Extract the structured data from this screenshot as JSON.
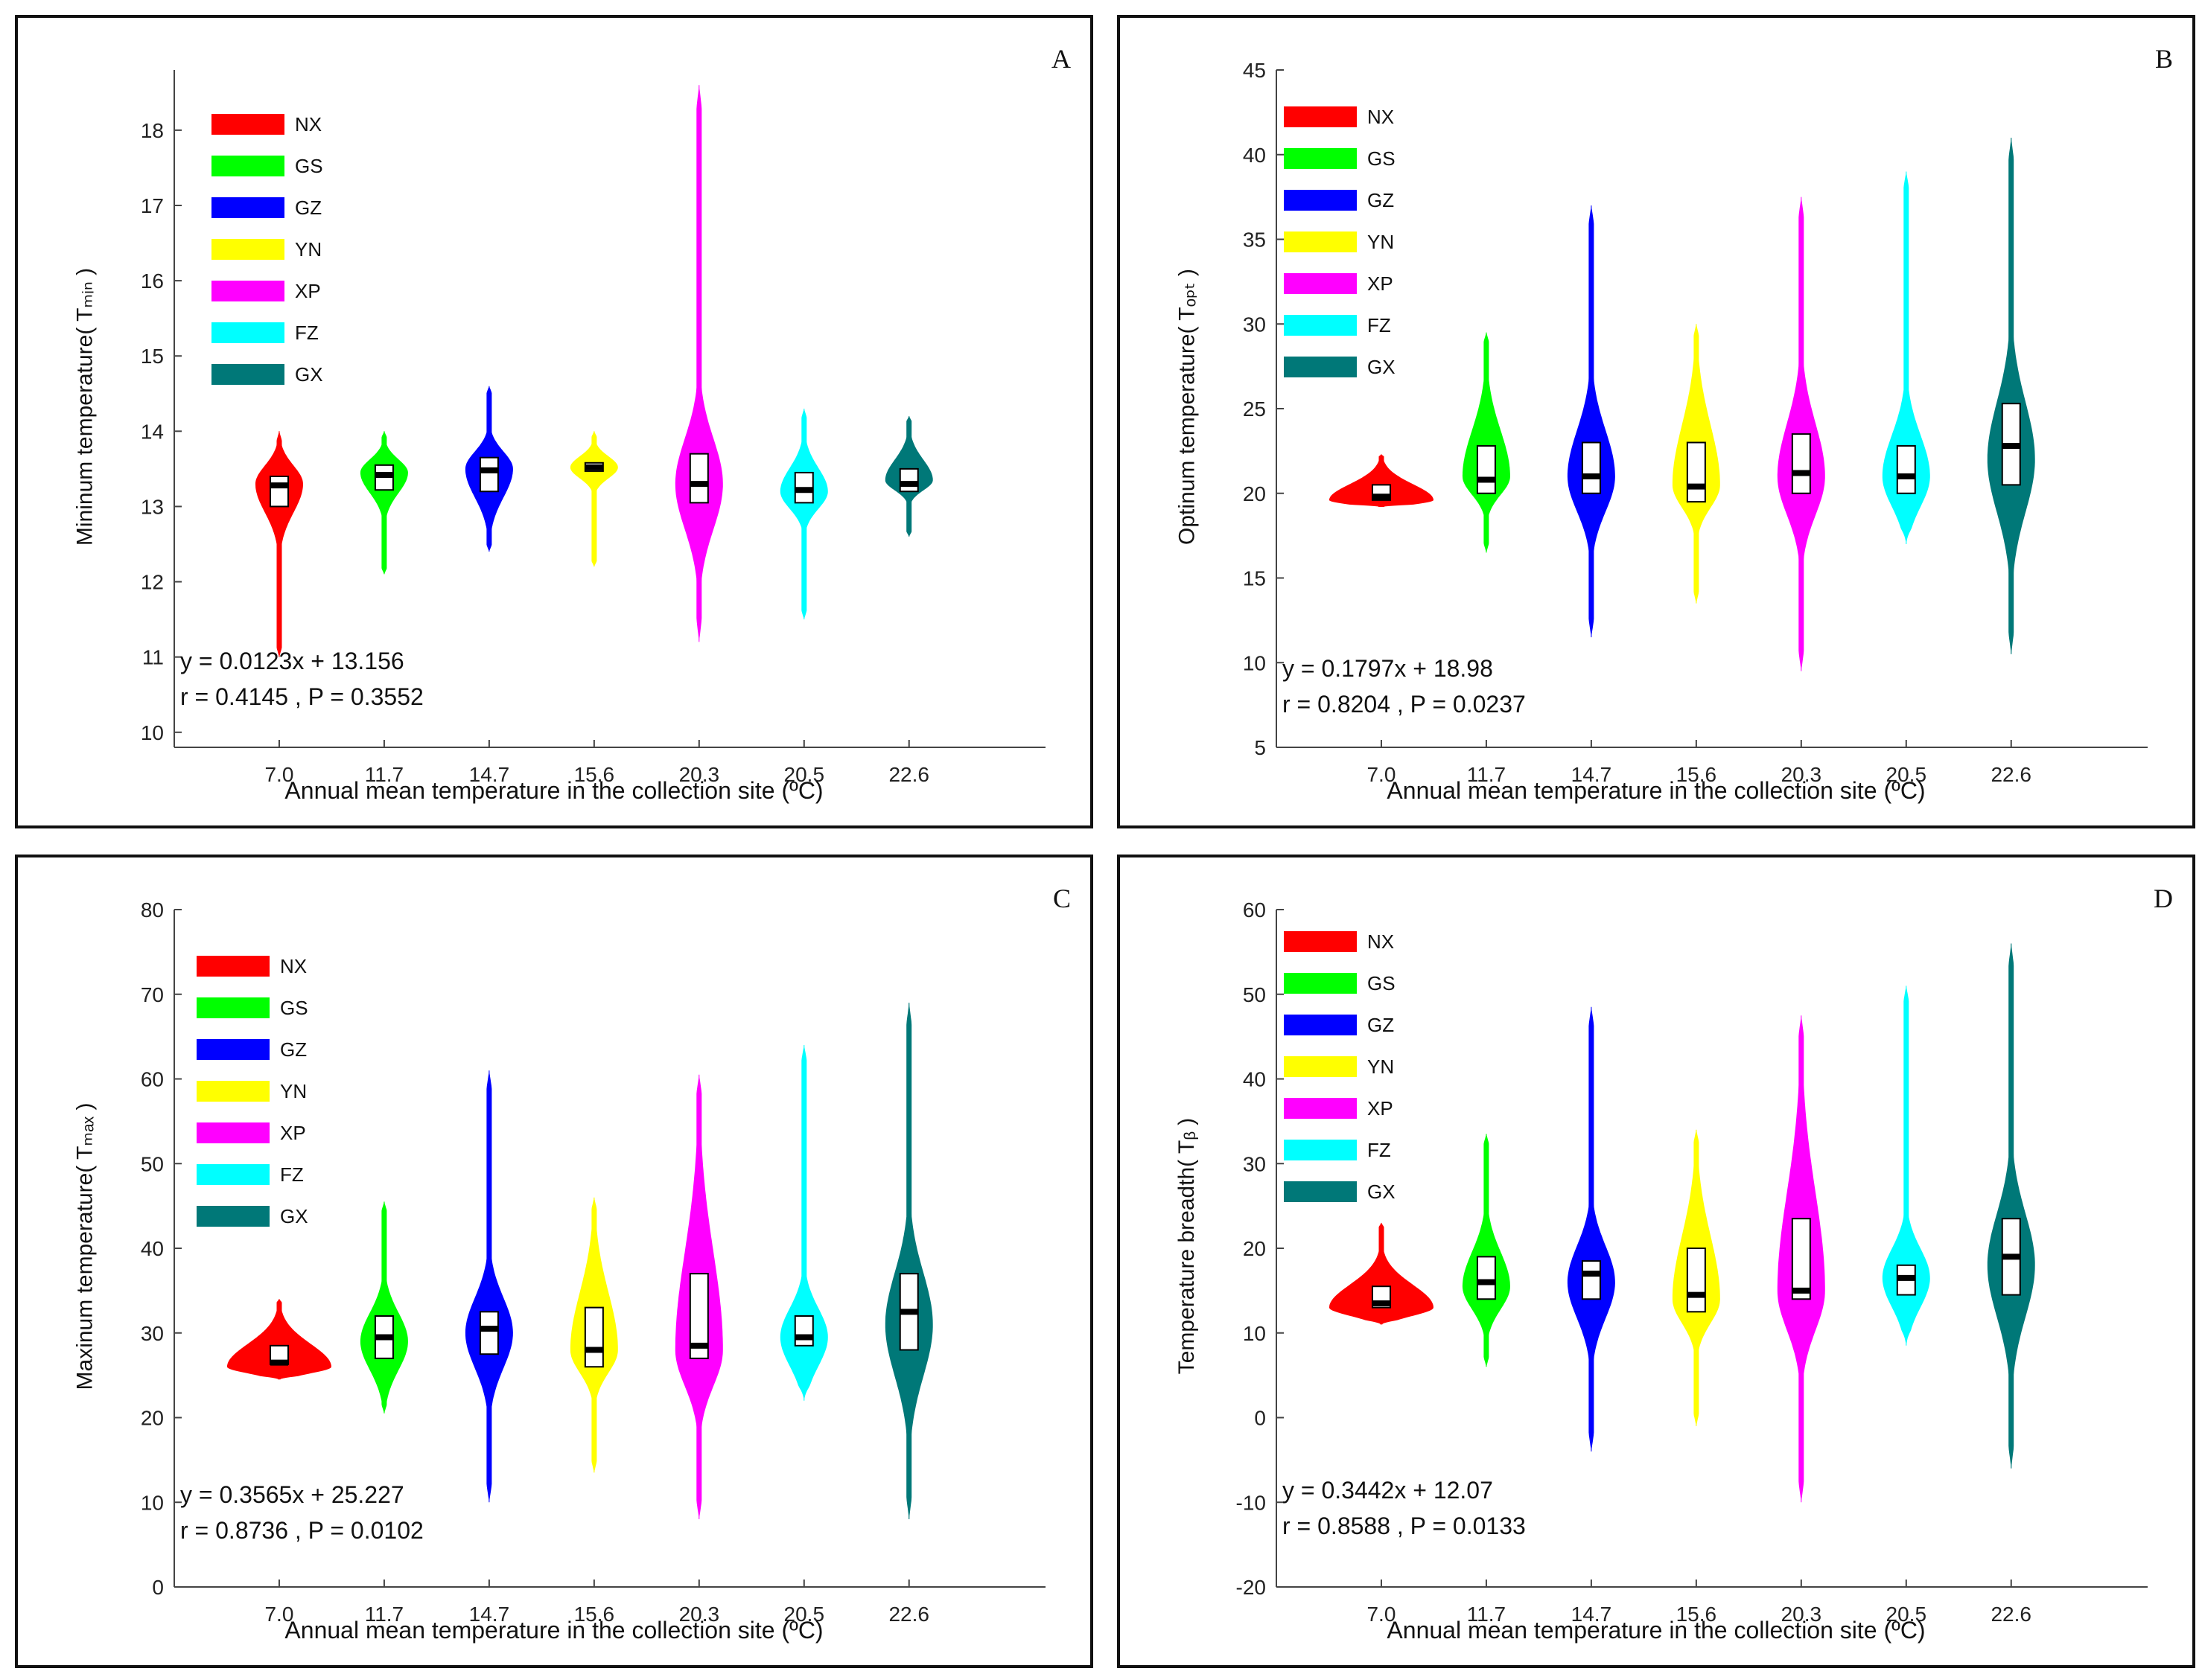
{
  "figure": {
    "series_labels": [
      "NX",
      "GS",
      "GZ",
      "YN",
      "XP",
      "FZ",
      "GX"
    ],
    "series_colors": [
      "#ff0000",
      "#00ff00",
      "#0000ff",
      "#ffff00",
      "#ff00ff",
      "#00ffff",
      "#007878"
    ],
    "xlabel": "Annual mean temperature in the collection site (ºC)"
  },
  "chart_data": [
    {
      "type": "violin",
      "panel": "A",
      "ylabel": "Mininum temperature( Tₘᵢₙ )",
      "xlabel": "Annual mean temperature in the collection site (ºC)",
      "categories": [
        "7.0",
        "11.7",
        "14.7",
        "15.6",
        "20.3",
        "20.5",
        "22.6"
      ],
      "ylim": [
        9.8,
        18.8
      ],
      "yticks": [
        10,
        11,
        12,
        13,
        14,
        15,
        16,
        17,
        18
      ],
      "equation": "y = 0.0123x + 13.156",
      "stats": "r = 0.4145 , P = 0.3552",
      "groups": [
        {
          "name": "NX",
          "median": 13.28,
          "q1": 13.0,
          "q3": 13.4,
          "min": 11.0,
          "max": 14.0,
          "mode": 13.3
        },
        {
          "name": "GS",
          "median": 13.42,
          "q1": 13.22,
          "q3": 13.55,
          "min": 12.1,
          "max": 14.0,
          "mode": 13.45
        },
        {
          "name": "GZ",
          "median": 13.48,
          "q1": 13.2,
          "q3": 13.65,
          "min": 12.4,
          "max": 14.6,
          "mode": 13.5
        },
        {
          "name": "YN",
          "median": 13.52,
          "q1": 13.47,
          "q3": 13.58,
          "min": 12.2,
          "max": 14.0,
          "mode": 13.52
        },
        {
          "name": "XP",
          "median": 13.3,
          "q1": 13.05,
          "q3": 13.7,
          "min": 11.2,
          "max": 18.6,
          "mode": 13.3
        },
        {
          "name": "FZ",
          "median": 13.22,
          "q1": 13.05,
          "q3": 13.45,
          "min": 11.5,
          "max": 14.3,
          "mode": 13.2
        },
        {
          "name": "GX",
          "median": 13.3,
          "q1": 13.2,
          "q3": 13.5,
          "min": 12.6,
          "max": 14.2,
          "mode": 13.35
        }
      ]
    },
    {
      "type": "violin",
      "panel": "B",
      "ylabel": "Optinum temperature( Tₒₚₜ )",
      "xlabel": "Annual mean temperature in the collection site (ºC)",
      "categories": [
        "7.0",
        "11.7",
        "14.7",
        "15.6",
        "20.3",
        "20.5",
        "22.6"
      ],
      "ylim": [
        5,
        45
      ],
      "yticks": [
        5,
        10,
        15,
        20,
        25,
        30,
        35,
        40,
        45
      ],
      "equation": "y = 0.1797x + 18.98",
      "stats": "r = 0.8204 , P = 0.0237",
      "groups": [
        {
          "name": "NX",
          "median": 19.8,
          "q1": 19.6,
          "q3": 20.5,
          "min": 19.2,
          "max": 22.3,
          "mode": 19.6
        },
        {
          "name": "GS",
          "median": 20.8,
          "q1": 20.0,
          "q3": 22.8,
          "min": 16.5,
          "max": 29.5,
          "mode": 21.0
        },
        {
          "name": "GZ",
          "median": 21.0,
          "q1": 20.0,
          "q3": 23.0,
          "min": 11.5,
          "max": 37.0,
          "mode": 21.0
        },
        {
          "name": "YN",
          "median": 20.4,
          "q1": 19.5,
          "q3": 23.0,
          "min": 13.5,
          "max": 30.0,
          "mode": 20.5
        },
        {
          "name": "XP",
          "median": 21.2,
          "q1": 20.0,
          "q3": 23.5,
          "min": 9.5,
          "max": 37.5,
          "mode": 21.0
        },
        {
          "name": "FZ",
          "median": 21.0,
          "q1": 20.0,
          "q3": 22.8,
          "min": 17.0,
          "max": 39.0,
          "mode": 21.0
        },
        {
          "name": "GX",
          "median": 22.8,
          "q1": 20.5,
          "q3": 25.3,
          "min": 10.5,
          "max": 41.0,
          "mode": 22.0
        }
      ]
    },
    {
      "type": "violin",
      "panel": "C",
      "ylabel": "Maxinum temperature( Tₘₐₓ )",
      "xlabel": "Annual mean temperature in the collection site (ºC)",
      "categories": [
        "7.0",
        "11.7",
        "14.7",
        "15.6",
        "20.3",
        "20.5",
        "22.6"
      ],
      "ylim": [
        0,
        80
      ],
      "yticks": [
        0,
        10,
        20,
        30,
        40,
        50,
        60,
        70,
        80
      ],
      "equation": "y = 0.3565x + 25.227",
      "stats": "r = 0.8736 , P = 0.0102",
      "groups": [
        {
          "name": "NX",
          "median": 26.5,
          "q1": 26.3,
          "q3": 28.5,
          "min": 24.5,
          "max": 34.0,
          "mode": 26.0
        },
        {
          "name": "GS",
          "median": 29.5,
          "q1": 27.0,
          "q3": 32.0,
          "min": 20.5,
          "max": 45.5,
          "mode": 29.0
        },
        {
          "name": "GZ",
          "median": 30.5,
          "q1": 27.5,
          "q3": 32.5,
          "min": 10.0,
          "max": 61.0,
          "mode": 30.0
        },
        {
          "name": "YN",
          "median": 28.0,
          "q1": 26.0,
          "q3": 33.0,
          "min": 13.5,
          "max": 46.0,
          "mode": 28.0
        },
        {
          "name": "XP",
          "median": 28.5,
          "q1": 27.0,
          "q3": 37.0,
          "min": 8.0,
          "max": 60.5,
          "mode": 28.0
        },
        {
          "name": "FZ",
          "median": 29.5,
          "q1": 28.5,
          "q3": 32.0,
          "min": 22.0,
          "max": 64.0,
          "mode": 29.5
        },
        {
          "name": "GX",
          "median": 32.5,
          "q1": 28.0,
          "q3": 37.0,
          "min": 8.0,
          "max": 69.0,
          "mode": 31.0
        }
      ]
    },
    {
      "type": "violin",
      "panel": "D",
      "ylabel": "Temperature breadth( Tᵦ )",
      "xlabel": "Annual mean temperature in the collection site (ºC)",
      "categories": [
        "7.0",
        "11.7",
        "14.7",
        "15.6",
        "20.3",
        "20.5",
        "22.6"
      ],
      "ylim": [
        -20,
        60
      ],
      "yticks": [
        -20,
        -10,
        0,
        10,
        20,
        30,
        40,
        50,
        60
      ],
      "equation": "y = 0.3442x + 12.07",
      "stats": "r = 0.8588 , P = 0.0133",
      "groups": [
        {
          "name": "NX",
          "median": 13.5,
          "q1": 13.0,
          "q3": 15.5,
          "min": 11.0,
          "max": 23.0,
          "mode": 13.0
        },
        {
          "name": "GS",
          "median": 16.0,
          "q1": 14.0,
          "q3": 19.0,
          "min": 6.0,
          "max": 33.5,
          "mode": 15.5
        },
        {
          "name": "GZ",
          "median": 17.0,
          "q1": 14.0,
          "q3": 18.5,
          "min": -4.0,
          "max": 48.5,
          "mode": 16.0
        },
        {
          "name": "YN",
          "median": 14.5,
          "q1": 12.5,
          "q3": 20.0,
          "min": -1.0,
          "max": 34.0,
          "mode": 14.0
        },
        {
          "name": "XP",
          "median": 15.0,
          "q1": 14.0,
          "q3": 23.5,
          "min": -10.0,
          "max": 47.5,
          "mode": 15.0
        },
        {
          "name": "FZ",
          "median": 16.5,
          "q1": 14.5,
          "q3": 18.0,
          "min": 8.5,
          "max": 51.0,
          "mode": 16.5
        },
        {
          "name": "GX",
          "median": 19.0,
          "q1": 14.5,
          "q3": 23.5,
          "min": -6.0,
          "max": 56.0,
          "mode": 18.0
        }
      ]
    }
  ]
}
